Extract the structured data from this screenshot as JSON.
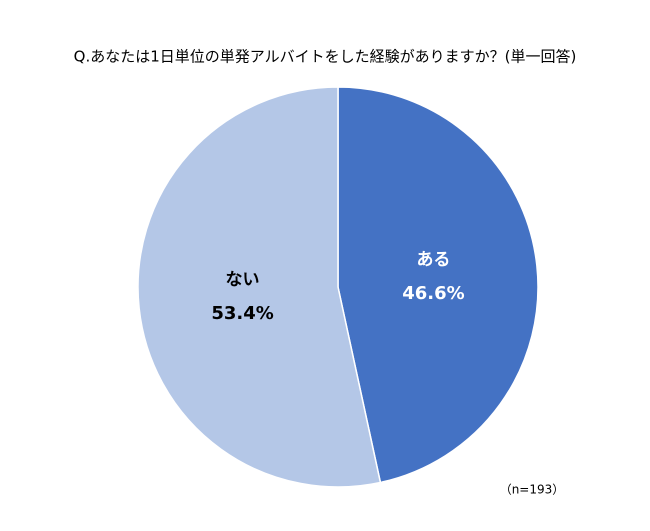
{
  "chart_data": {
    "type": "pie",
    "title": "Q.あなたは1日単位の単発アルバイトをした経験がありますか？(単一回答)",
    "categories": [
      "ある",
      "ない"
    ],
    "values": [
      46.6,
      53.4
    ],
    "value_labels": [
      "46.6%",
      "53.4%"
    ],
    "colors": [
      "#4472c4",
      "#b4c7e7"
    ],
    "label_colors": [
      "#ffffff",
      "#000000"
    ],
    "note": "（n=193）"
  }
}
